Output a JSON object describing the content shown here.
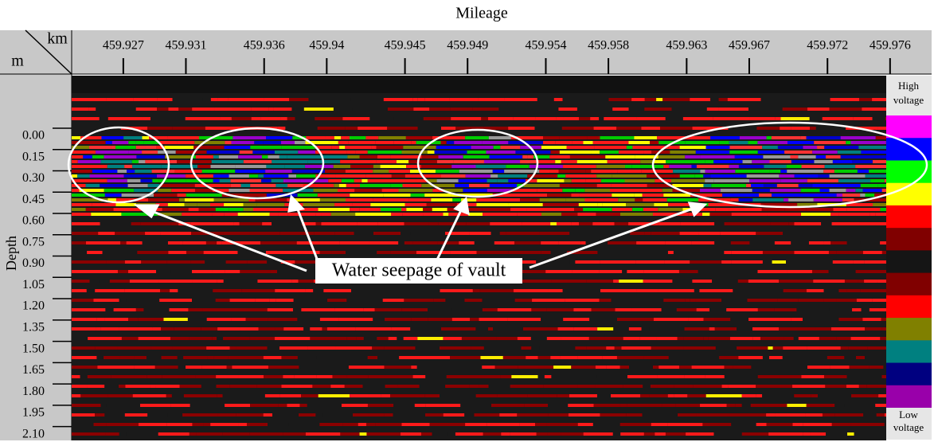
{
  "chart_data": {
    "type": "radargram",
    "title": "Mileage",
    "x_unit": "km",
    "y_unit": "m",
    "y_label": "Depth",
    "xlim": [
      459.9237,
      459.9784
    ],
    "xticks": [
      459.927,
      459.931,
      459.936,
      459.94,
      459.945,
      459.949,
      459.954,
      459.958,
      459.963,
      459.967,
      459.972,
      459.976
    ],
    "ylim": [
      -0.42,
      2.13
    ],
    "yticks": [
      {
        "value": 0,
        "label": "0.00"
      },
      {
        "value": 0.15,
        "label": "0.15"
      },
      {
        "value": 0.3,
        "label": "0.30"
      },
      {
        "value": 0.45,
        "label": "0.45"
      },
      {
        "value": 0.6,
        "label": "0.60"
      },
      {
        "value": 0.75,
        "label": "0.75"
      },
      {
        "value": 0.9,
        "label": "0.90"
      },
      {
        "value": 1.05,
        "label": "1.05"
      },
      {
        "value": 1.2,
        "label": "1.20"
      },
      {
        "value": 1.35,
        "label": "1.35"
      },
      {
        "value": 1.5,
        "label": "1.50"
      },
      {
        "value": 1.65,
        "label": "1.65"
      },
      {
        "value": 1.8,
        "label": "1.80"
      },
      {
        "value": 1.95,
        "label": "1.95"
      },
      {
        "value": 2.1,
        "label": "2.10"
      }
    ],
    "annotation": "Water seepage of vault",
    "colorbar": {
      "high_label": "High voltage",
      "low_label": "Low voltage",
      "colors": [
        "#ff00ff",
        "#0000ff",
        "#00ff00",
        "#ffff00",
        "#ff0000",
        "#800000",
        "#151515",
        "#800000",
        "#ff0000",
        "#808000",
        "#008080",
        "#000080",
        "#9900aa"
      ]
    }
  }
}
